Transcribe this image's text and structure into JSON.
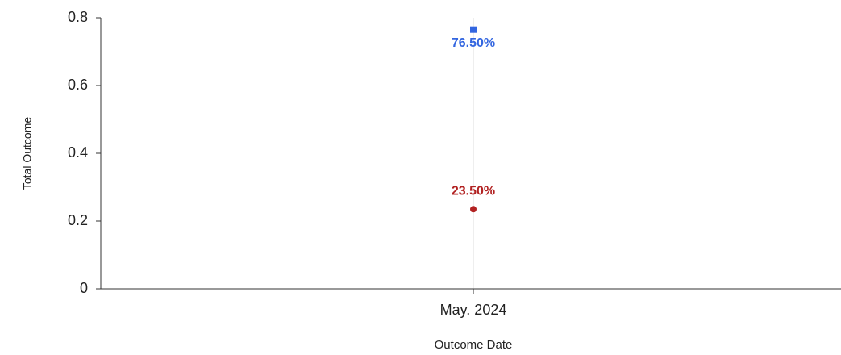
{
  "chart_data": {
    "type": "line",
    "categories": [
      "May. 2024"
    ],
    "series": [
      {
        "color": "#3366e0",
        "marker": "square",
        "label_position": "below",
        "values": [
          0.765
        ],
        "value_labels": [
          "76.50%"
        ]
      },
      {
        "color": "#b22222",
        "marker": "circle",
        "label_position": "above",
        "values": [
          0.235
        ],
        "value_labels": [
          "23.50%"
        ]
      }
    ],
    "ylim": [
      0,
      0.8
    ],
    "yticks": [
      0,
      0.2,
      0.4,
      0.6,
      0.8
    ],
    "ylabel": "Total Outcome",
    "xlabel": "Outcome Date",
    "grid": "x"
  }
}
